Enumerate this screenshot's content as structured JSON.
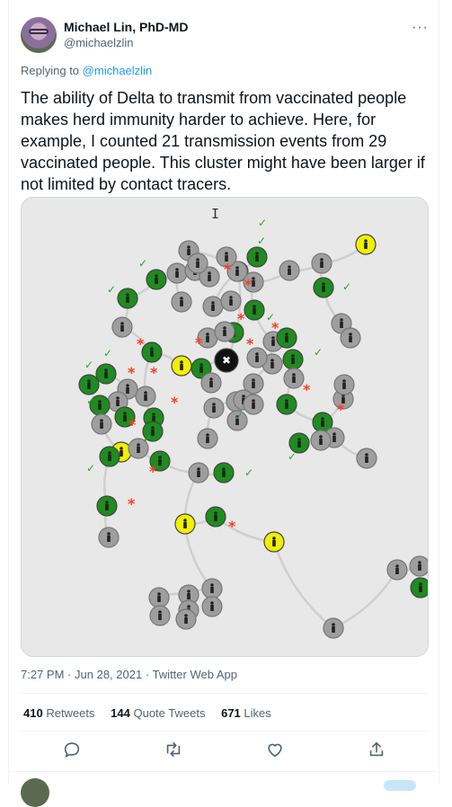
{
  "author": {
    "name": "Michael Lin, PhD-MD",
    "handle": "@michaelzlin"
  },
  "more_label": "···",
  "reply": {
    "prefix": "Replying to",
    "handle": "@michaelzlin"
  },
  "tweet": {
    "text": "The ability of Delta to transmit from vaccinated people makes herd immunity harder to achieve. Here, for example, I counted 21 transmission events from 29 vaccinated people. This cluster might have been larger if not limited by contact tracers."
  },
  "meta": {
    "time": "7:27 PM",
    "sep1": "·",
    "date": "Jun 28, 2021",
    "sep2": "·",
    "source": "Twitter Web App"
  },
  "stats": {
    "retweets_count": "410",
    "retweets_label": "Retweets",
    "quotes_count": "144",
    "quotes_label": "Quote Tweets",
    "likes_count": "671",
    "likes_label": "Likes"
  },
  "actions": [
    "reply-icon",
    "retweet-icon",
    "like-icon",
    "share-icon"
  ],
  "colors": {
    "accent": "#1d9bf0",
    "vaccinated_node": "#1e8c1e",
    "unvaccinated_node": "#9e9e9e",
    "index_node": "#f0f000",
    "transmission_marker": "#ff3b1f",
    "check_marker": "#22aa22"
  }
}
